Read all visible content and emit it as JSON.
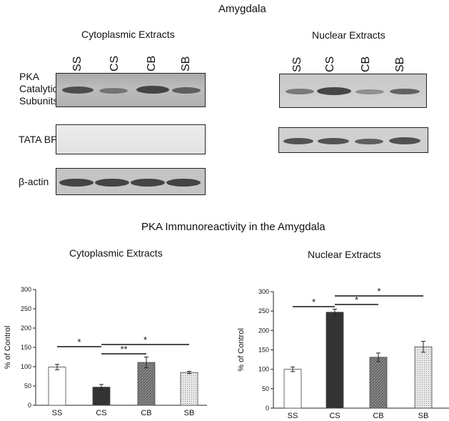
{
  "figure": {
    "title": "Amygdala",
    "blots": {
      "cytoplasmic": {
        "heading": "Cytoplasmic Extracts",
        "lanes": [
          "SS",
          "CS",
          "CB",
          "SB"
        ]
      },
      "nuclear": {
        "heading": "Nuclear Extracts",
        "lanes": [
          "SS",
          "CS",
          "CB",
          "SB"
        ]
      },
      "rows": {
        "pka": [
          "PKA",
          "Catalytic",
          "Subunits"
        ],
        "tata": "TATA BP",
        "actin": "β-actin"
      }
    },
    "charts_title": "PKA Immunoreactivity in the Amygdala"
  },
  "chart_data": [
    {
      "type": "bar",
      "title": "Cytoplasmic Extracts",
      "ylabel": "% of Control",
      "xlabel": "",
      "categories": [
        "SS",
        "CS",
        "CB",
        "SB"
      ],
      "values": [
        99,
        47,
        111,
        85
      ],
      "errors": [
        7,
        7,
        14,
        3
      ],
      "ylim": [
        0,
        300
      ],
      "yticks": [
        0,
        50,
        100,
        150,
        200,
        250,
        300
      ],
      "fills": [
        "white",
        "dark",
        "diagonal",
        "dotted"
      ],
      "significance": [
        {
          "from": "SS",
          "to": "CS",
          "label": "*"
        },
        {
          "from": "CS",
          "to": "CB",
          "label": "**"
        },
        {
          "from": "CS",
          "to": "SB",
          "label": "*"
        }
      ],
      "grid": false,
      "legend": "none"
    },
    {
      "type": "bar",
      "title": "Nuclear Extracts",
      "ylabel": "% of Control",
      "xlabel": "",
      "categories": [
        "SS",
        "CS",
        "CB",
        "SB"
      ],
      "values": [
        100,
        247,
        131,
        158
      ],
      "errors": [
        6,
        8,
        11,
        14
      ],
      "ylim": [
        0,
        300
      ],
      "yticks": [
        0,
        50,
        100,
        150,
        200,
        250,
        300
      ],
      "fills": [
        "white",
        "dark",
        "diagonal",
        "dotted"
      ],
      "significance": [
        {
          "from": "SS",
          "to": "CS",
          "label": "*"
        },
        {
          "from": "CS",
          "to": "CB",
          "label": "*"
        },
        {
          "from": "CS",
          "to": "SB",
          "label": "*"
        }
      ],
      "grid": false,
      "legend": "none"
    }
  ]
}
